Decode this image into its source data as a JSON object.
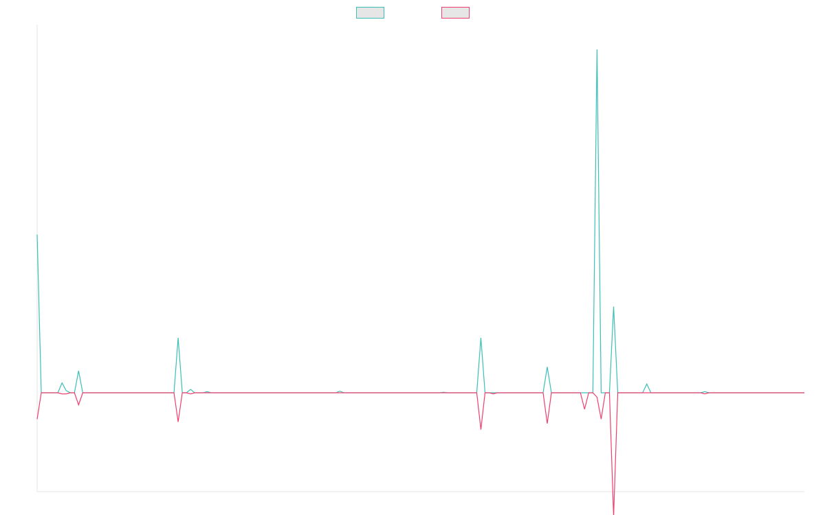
{
  "chart_data": {
    "type": "line",
    "title": "",
    "xlabel": "",
    "ylabel": "",
    "x_count": 186,
    "ylim": [
      -180,
      670
    ],
    "grid": false,
    "legend_position": "top-center",
    "series": [
      {
        "color": "#3bbfb7",
        "legend_fill": "#e6e6e6",
        "points": [
          [
            0,
            288
          ],
          [
            1,
            0
          ],
          [
            5,
            0
          ],
          [
            6,
            18
          ],
          [
            7,
            4
          ],
          [
            8,
            0
          ],
          [
            9,
            0
          ],
          [
            10,
            40
          ],
          [
            11,
            0
          ],
          [
            33,
            0
          ],
          [
            34,
            100
          ],
          [
            35,
            0
          ],
          [
            36,
            0
          ],
          [
            37,
            6
          ],
          [
            38,
            0
          ],
          [
            40,
            0
          ],
          [
            41,
            2
          ],
          [
            42,
            0
          ],
          [
            72,
            0
          ],
          [
            73,
            3
          ],
          [
            74,
            0
          ],
          [
            97,
            0
          ],
          [
            98,
            1
          ],
          [
            99,
            0
          ],
          [
            106,
            0
          ],
          [
            107,
            100
          ],
          [
            108,
            0
          ],
          [
            109,
            0
          ],
          [
            110,
            0
          ],
          [
            111,
            0
          ],
          [
            122,
            0
          ],
          [
            123,
            47
          ],
          [
            124,
            0
          ],
          [
            131,
            0
          ],
          [
            132,
            0
          ],
          [
            133,
            0
          ],
          [
            134,
            0
          ],
          [
            135,
            625
          ],
          [
            136,
            0
          ],
          [
            137,
            0
          ],
          [
            138,
            0
          ],
          [
            139,
            157
          ],
          [
            140,
            0
          ],
          [
            146,
            0
          ],
          [
            147,
            16
          ],
          [
            148,
            0
          ],
          [
            160,
            0
          ],
          [
            161,
            2
          ],
          [
            162,
            0
          ],
          [
            185,
            0
          ]
        ]
      },
      {
        "color": "#f03e6e",
        "legend_fill": "#e6e6e6",
        "points": [
          [
            0,
            -48
          ],
          [
            1,
            0
          ],
          [
            5,
            0
          ],
          [
            6,
            -2
          ],
          [
            7,
            -2
          ],
          [
            8,
            0
          ],
          [
            9,
            0
          ],
          [
            10,
            -22
          ],
          [
            11,
            0
          ],
          [
            33,
            0
          ],
          [
            34,
            -53
          ],
          [
            35,
            0
          ],
          [
            36,
            0
          ],
          [
            37,
            -2
          ],
          [
            38,
            0
          ],
          [
            40,
            0
          ],
          [
            41,
            0
          ],
          [
            42,
            0
          ],
          [
            72,
            0
          ],
          [
            73,
            0
          ],
          [
            74,
            0
          ],
          [
            106,
            0
          ],
          [
            107,
            -67
          ],
          [
            108,
            0
          ],
          [
            109,
            0
          ],
          [
            110,
            -2
          ],
          [
            111,
            0
          ],
          [
            122,
            0
          ],
          [
            123,
            -56
          ],
          [
            124,
            0
          ],
          [
            131,
            0
          ],
          [
            132,
            -30
          ],
          [
            133,
            0
          ],
          [
            134,
            0
          ],
          [
            135,
            -8
          ],
          [
            136,
            -48
          ],
          [
            137,
            0
          ],
          [
            138,
            0
          ],
          [
            139,
            -225
          ],
          [
            140,
            0
          ],
          [
            146,
            0
          ],
          [
            147,
            0
          ],
          [
            148,
            0
          ],
          [
            160,
            0
          ],
          [
            161,
            -2
          ],
          [
            162,
            0
          ],
          [
            185,
            0
          ]
        ]
      }
    ]
  }
}
